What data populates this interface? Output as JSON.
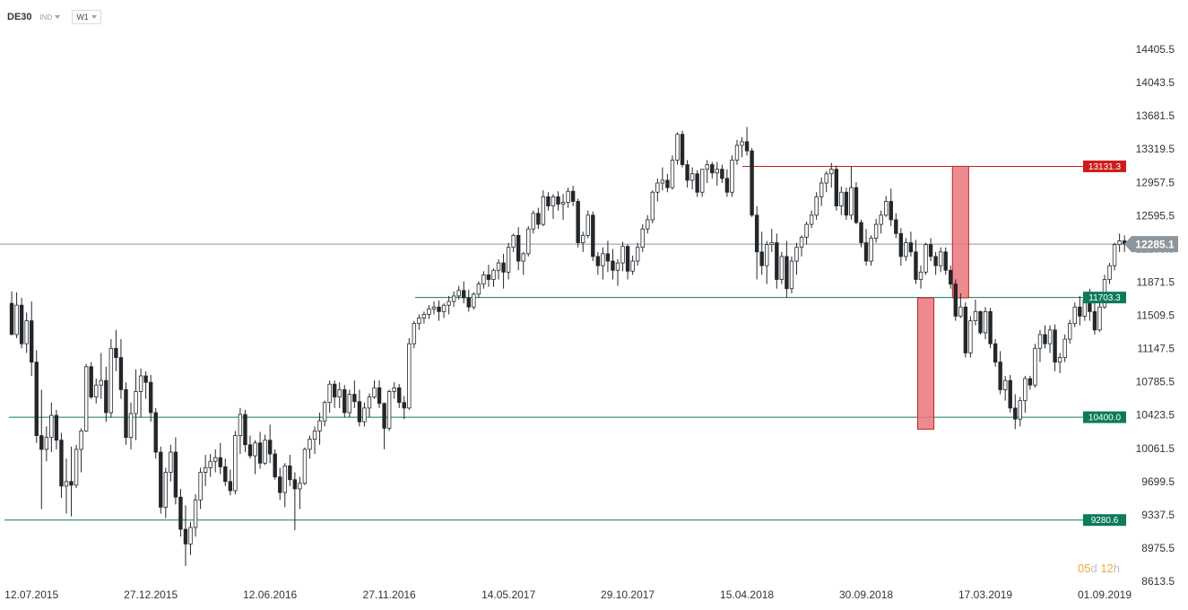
{
  "toolbar": {
    "symbol": "DE30",
    "type": "IND",
    "timeframe": "W1"
  },
  "timer": {
    "days": "05",
    "days_unit": "d",
    "hours": "12",
    "hours_unit": "h"
  },
  "colors": {
    "support": "#0d7a5a",
    "resistance": "#cc1d1d",
    "current": "#8e969d",
    "box_fill": "#e8777b",
    "box_stroke": "#c22424",
    "candle": "#23272b"
  },
  "chart_data": {
    "type": "candlestick",
    "timeframe": "W1",
    "ylim": [
      8613.5,
      14587
    ],
    "y_ticks": [
      "14405.5",
      "14043.5",
      "13681.5",
      "13319.5",
      "12957.5",
      "12595.5",
      "12233.5",
      "11871.5",
      "11509.5",
      "11147.5",
      "10785.5",
      "10423.5",
      "10061.5",
      "9699.5",
      "9337.5",
      "8975.5",
      "8613.5"
    ],
    "x_ticks": [
      "12.07.2015",
      "27.12.2015",
      "12.06.2016",
      "27.11.2016",
      "14.05.2017",
      "29.10.2017",
      "15.04.2018",
      "30.09.2018",
      "17.03.2019",
      "01.09.2019"
    ],
    "current_price": {
      "label": "12285.1",
      "value": 12285.1
    },
    "levels": [
      {
        "label": "13131.3",
        "value": 13131.3,
        "kind": "resistance"
      },
      {
        "label": "11703.3",
        "value": 11703.3,
        "kind": "support"
      },
      {
        "label": "10400.0",
        "value": 10400.0,
        "kind": "support"
      },
      {
        "label": "9280.6",
        "value": 9280.6,
        "kind": "support"
      }
    ],
    "boxes": [
      {
        "from_date": "2018-12-16",
        "to_date": "2018-12-30",
        "low": 10270,
        "high": 11700
      },
      {
        "from_date": "2019-02-03",
        "to_date": "2019-02-17",
        "low": 11700,
        "high": 13131.3
      }
    ],
    "ohlc": [
      [
        11640,
        11770,
        11300,
        11300
      ],
      [
        11300,
        11760,
        11260,
        11620
      ],
      [
        11620,
        11700,
        11150,
        11200
      ],
      [
        11200,
        11540,
        11100,
        11450
      ],
      [
        11450,
        11660,
        10850,
        11000
      ],
      [
        11000,
        11130,
        10120,
        10200
      ],
      [
        10200,
        10700,
        9400,
        10050
      ],
      [
        10050,
        10300,
        9920,
        10180
      ],
      [
        10180,
        10560,
        10020,
        10420
      ],
      [
        10420,
        10480,
        10050,
        10150
      ],
      [
        10150,
        10230,
        9520,
        9650
      ],
      [
        9650,
        9950,
        9350,
        9700
      ],
      [
        9700,
        10080,
        9320,
        9660
      ],
      [
        9660,
        10100,
        9630,
        10050
      ],
      [
        10050,
        10280,
        9800,
        10250
      ],
      [
        10250,
        10980,
        10240,
        10950
      ],
      [
        10950,
        11000,
        10600,
        10620
      ],
      [
        10620,
        10820,
        10550,
        10750
      ],
      [
        10750,
        11100,
        10600,
        10800
      ],
      [
        10800,
        10950,
        10350,
        10450
      ],
      [
        10450,
        11250,
        10400,
        11150
      ],
      [
        11150,
        11350,
        10900,
        11050
      ],
      [
        11050,
        11250,
        10600,
        10700
      ],
      [
        10700,
        10780,
        10100,
        10180
      ],
      [
        10180,
        10560,
        10050,
        10440
      ],
      [
        10440,
        10920,
        10150,
        10680
      ],
      [
        10680,
        10930,
        10400,
        10850
      ],
      [
        10850,
        10900,
        10600,
        10780
      ],
      [
        10780,
        10860,
        10350,
        10450
      ],
      [
        10450,
        10500,
        9950,
        10020
      ],
      [
        10020,
        10080,
        9350,
        9420
      ],
      [
        9420,
        9850,
        9300,
        9800
      ],
      [
        9800,
        10100,
        9700,
        10020
      ],
      [
        10020,
        10180,
        9450,
        9530
      ],
      [
        9530,
        9620,
        9100,
        9180
      ],
      [
        9180,
        9440,
        8780,
        9020
      ],
      [
        9020,
        9260,
        8900,
        9200
      ],
      [
        9200,
        9560,
        9100,
        9500
      ],
      [
        9500,
        9850,
        9400,
        9800
      ],
      [
        9800,
        9990,
        9650,
        9850
      ],
      [
        9850,
        10000,
        9750,
        9920
      ],
      [
        9920,
        10050,
        9800,
        9960
      ],
      [
        9960,
        10120,
        9780,
        9860
      ],
      [
        9860,
        9950,
        9650,
        9700
      ],
      [
        9700,
        9830,
        9550,
        9600
      ],
      [
        9600,
        10250,
        9560,
        10200
      ],
      [
        10200,
        10500,
        10000,
        10430
      ],
      [
        10430,
        10480,
        10020,
        10100
      ],
      [
        10100,
        10200,
        9950,
        9980
      ],
      [
        9980,
        10150,
        9780,
        10120
      ],
      [
        10120,
        10240,
        9840,
        9900
      ],
      [
        9900,
        10210,
        9880,
        10150
      ],
      [
        10150,
        10320,
        9900,
        10000
      ],
      [
        10000,
        10050,
        9720,
        9750
      ],
      [
        9750,
        9850,
        9500,
        9580
      ],
      [
        9580,
        9900,
        9420,
        9870
      ],
      [
        9870,
        9990,
        9650,
        9720
      ],
      [
        9720,
        9800,
        9170,
        9620
      ],
      [
        9620,
        9750,
        9400,
        9680
      ],
      [
        9680,
        10070,
        9660,
        10050
      ],
      [
        10050,
        10200,
        9950,
        10160
      ],
      [
        10160,
        10300,
        10000,
        10250
      ],
      [
        10250,
        10450,
        10100,
        10360
      ],
      [
        10360,
        10580,
        10300,
        10560
      ],
      [
        10560,
        10800,
        10450,
        10760
      ],
      [
        10760,
        10800,
        10500,
        10620
      ],
      [
        10620,
        10780,
        10500,
        10700
      ],
      [
        10700,
        10750,
        10400,
        10450
      ],
      [
        10450,
        10700,
        10400,
        10650
      ],
      [
        10650,
        10800,
        10500,
        10570
      ],
      [
        10570,
        10700,
        10300,
        10350
      ],
      [
        10350,
        10560,
        10300,
        10500
      ],
      [
        10500,
        10660,
        10400,
        10620
      ],
      [
        10620,
        10800,
        10600,
        10720
      ],
      [
        10720,
        10800,
        10500,
        10550
      ],
      [
        10550,
        10560,
        10050,
        10280
      ],
      [
        10280,
        10700,
        10250,
        10680
      ],
      [
        10680,
        10780,
        10600,
        10720
      ],
      [
        10720,
        10760,
        10500,
        10560
      ],
      [
        10560,
        10630,
        10380,
        10500
      ],
      [
        10500,
        11260,
        10480,
        11200
      ],
      [
        11200,
        11450,
        11150,
        11420
      ],
      [
        11420,
        11520,
        11350,
        11480
      ],
      [
        11480,
        11550,
        11420,
        11520
      ],
      [
        11520,
        11620,
        11470,
        11580
      ],
      [
        11580,
        11660,
        11520,
        11600
      ],
      [
        11600,
        11670,
        11450,
        11550
      ],
      [
        11550,
        11640,
        11480,
        11620
      ],
      [
        11620,
        11720,
        11520,
        11660
      ],
      [
        11660,
        11770,
        11600,
        11720
      ],
      [
        11720,
        11830,
        11680,
        11780
      ],
      [
        11780,
        11880,
        11640,
        11700
      ],
      [
        11700,
        11790,
        11550,
        11600
      ],
      [
        11600,
        11760,
        11570,
        11740
      ],
      [
        11740,
        11880,
        11700,
        11850
      ],
      [
        11850,
        11990,
        11800,
        11950
      ],
      [
        11950,
        12060,
        11820,
        11900
      ],
      [
        11900,
        12020,
        11820,
        12000
      ],
      [
        12000,
        12120,
        11900,
        12080
      ],
      [
        12080,
        12180,
        11800,
        11980
      ],
      [
        11980,
        12300,
        11900,
        12250
      ],
      [
        12250,
        12400,
        12200,
        12380
      ],
      [
        12380,
        12470,
        12000,
        12100
      ],
      [
        12100,
        12200,
        11950,
        12180
      ],
      [
        12180,
        12480,
        12150,
        12450
      ],
      [
        12450,
        12650,
        12400,
        12620
      ],
      [
        12620,
        12680,
        12450,
        12500
      ],
      [
        12500,
        12870,
        12480,
        12800
      ],
      [
        12800,
        12850,
        12650,
        12700
      ],
      [
        12700,
        12830,
        12560,
        12800
      ],
      [
        12800,
        12860,
        12650,
        12720
      ],
      [
        12720,
        12830,
        12550,
        12740
      ],
      [
        12740,
        12900,
        12680,
        12860
      ],
      [
        12860,
        12920,
        12700,
        12750
      ],
      [
        12750,
        12780,
        12250,
        12300
      ],
      [
        12300,
        12420,
        12200,
        12380
      ],
      [
        12380,
        12650,
        12350,
        12600
      ],
      [
        12600,
        12640,
        12100,
        12150
      ],
      [
        12150,
        12200,
        11950,
        12050
      ],
      [
        12050,
        12250,
        11900,
        12180
      ],
      [
        12180,
        12320,
        11980,
        12100
      ],
      [
        12100,
        12230,
        11900,
        12000
      ],
      [
        12000,
        12120,
        11830,
        12080
      ],
      [
        12080,
        12310,
        11990,
        12260
      ],
      [
        12260,
        12280,
        11900,
        11990
      ],
      [
        11990,
        12160,
        11950,
        12100
      ],
      [
        12100,
        12300,
        12050,
        12250
      ],
      [
        12250,
        12500,
        12200,
        12450
      ],
      [
        12450,
        12600,
        12400,
        12550
      ],
      [
        12550,
        12870,
        12510,
        12850
      ],
      [
        12850,
        13000,
        12750,
        12950
      ],
      [
        12950,
        13120,
        12870,
        12980
      ],
      [
        12980,
        13050,
        12850,
        12900
      ],
      [
        12900,
        13250,
        12880,
        13200
      ],
      [
        13200,
        13500,
        13150,
        13480
      ],
      [
        13480,
        13520,
        13120,
        13150
      ],
      [
        13150,
        13200,
        12900,
        12980
      ],
      [
        12980,
        13120,
        12880,
        13050
      ],
      [
        13050,
        13090,
        12800,
        12850
      ],
      [
        12850,
        13100,
        12800,
        13100
      ],
      [
        13100,
        13200,
        12950,
        13150
      ],
      [
        13150,
        13180,
        13000,
        13060
      ],
      [
        13060,
        13180,
        12920,
        13100
      ],
      [
        13100,
        13150,
        12950,
        13000
      ],
      [
        13000,
        13100,
        12800,
        12850
      ],
      [
        12850,
        13250,
        12800,
        13200
      ],
      [
        13200,
        13420,
        13150,
        13360
      ],
      [
        13360,
        13450,
        13230,
        13400
      ],
      [
        13400,
        13560,
        13250,
        13300
      ],
      [
        13300,
        13330,
        12580,
        12600
      ],
      [
        12600,
        12700,
        11900,
        12200
      ],
      [
        12200,
        12420,
        11950,
        12050
      ],
      [
        12050,
        12320,
        11850,
        12280
      ],
      [
        12280,
        12450,
        12200,
        12300
      ],
      [
        12300,
        12400,
        11800,
        11900
      ],
      [
        11900,
        12200,
        11850,
        12150
      ],
      [
        12150,
        12320,
        11700,
        11800
      ],
      [
        11800,
        12150,
        11750,
        12100
      ],
      [
        12100,
        12300,
        11950,
        12250
      ],
      [
        12250,
        12380,
        12150,
        12360
      ],
      [
        12360,
        12530,
        12280,
        12500
      ],
      [
        12500,
        12650,
        12460,
        12600
      ],
      [
        12600,
        12850,
        12550,
        12800
      ],
      [
        12800,
        13010,
        12700,
        12950
      ],
      [
        12950,
        13080,
        12850,
        13050
      ],
      [
        13050,
        13170,
        12900,
        13100
      ],
      [
        13100,
        13140,
        12650,
        12700
      ],
      [
        12700,
        12910,
        12600,
        12850
      ],
      [
        12850,
        12900,
        12550,
        12600
      ],
      [
        12600,
        13130,
        12550,
        12900
      ],
      [
        12900,
        12960,
        12500,
        12520
      ],
      [
        12520,
        12550,
        12250,
        12300
      ],
      [
        12300,
        12450,
        12050,
        12100
      ],
      [
        12100,
        12380,
        12050,
        12350
      ],
      [
        12350,
        12560,
        12300,
        12500
      ],
      [
        12500,
        12650,
        12400,
        12600
      ],
      [
        12600,
        12810,
        12580,
        12750
      ],
      [
        12750,
        12890,
        12480,
        12550
      ],
      [
        12550,
        12620,
        12350,
        12400
      ],
      [
        12400,
        12460,
        12050,
        12150
      ],
      [
        12150,
        12350,
        12100,
        12300
      ],
      [
        12300,
        12420,
        12150,
        12200
      ],
      [
        12200,
        12330,
        11850,
        11900
      ],
      [
        11900,
        12050,
        11800,
        11980
      ],
      [
        11980,
        12300,
        11950,
        12280
      ],
      [
        12280,
        12350,
        12100,
        12150
      ],
      [
        12150,
        12200,
        11950,
        12050
      ],
      [
        12050,
        12250,
        11980,
        12200
      ],
      [
        12200,
        12250,
        11950,
        12000
      ],
      [
        12000,
        12050,
        11800,
        11850
      ],
      [
        11850,
        11900,
        11450,
        11500
      ],
      [
        11500,
        11750,
        11480,
        11600
      ],
      [
        11600,
        11650,
        11050,
        11100
      ],
      [
        11100,
        11500,
        11050,
        11450
      ],
      [
        11450,
        11680,
        11400,
        11550
      ],
      [
        11550,
        11560,
        11300,
        11320
      ],
      [
        11320,
        11600,
        11250,
        11550
      ],
      [
        11550,
        11590,
        11150,
        11200
      ],
      [
        11200,
        11250,
        10950,
        11000
      ],
      [
        11000,
        11120,
        10650,
        10700
      ],
      [
        10700,
        10850,
        10580,
        10800
      ],
      [
        10800,
        10860,
        10450,
        10500
      ],
      [
        10500,
        10650,
        10270,
        10380
      ],
      [
        10380,
        10620,
        10300,
        10580
      ],
      [
        10580,
        10850,
        10450,
        10820
      ],
      [
        10820,
        10850,
        10700,
        10750
      ],
      [
        10750,
        11200,
        10720,
        11150
      ],
      [
        11150,
        11350,
        11000,
        11300
      ],
      [
        11300,
        11400,
        11150,
        11200
      ],
      [
        11200,
        11400,
        11100,
        11350
      ],
      [
        11350,
        11410,
        10900,
        11000
      ],
      [
        11000,
        11100,
        10880,
        11050
      ],
      [
        11050,
        11300,
        11000,
        11250
      ],
      [
        11250,
        11460,
        11200,
        11420
      ],
      [
        11420,
        11650,
        11380,
        11600
      ],
      [
        11600,
        11720,
        11400,
        11500
      ],
      [
        11500,
        11700,
        11450,
        11680
      ],
      [
        11680,
        11800,
        11450,
        11550
      ],
      [
        11550,
        11650,
        11300,
        11350
      ],
      [
        11350,
        11650,
        11330,
        11600
      ],
      [
        11600,
        11950,
        11580,
        11900
      ],
      [
        11900,
        12080,
        11850,
        12050
      ],
      [
        12050,
        12300,
        12000,
        12280
      ],
      [
        12280,
        12400,
        12200,
        12320
      ],
      [
        12320,
        12380,
        12200,
        12285.1
      ]
    ]
  }
}
